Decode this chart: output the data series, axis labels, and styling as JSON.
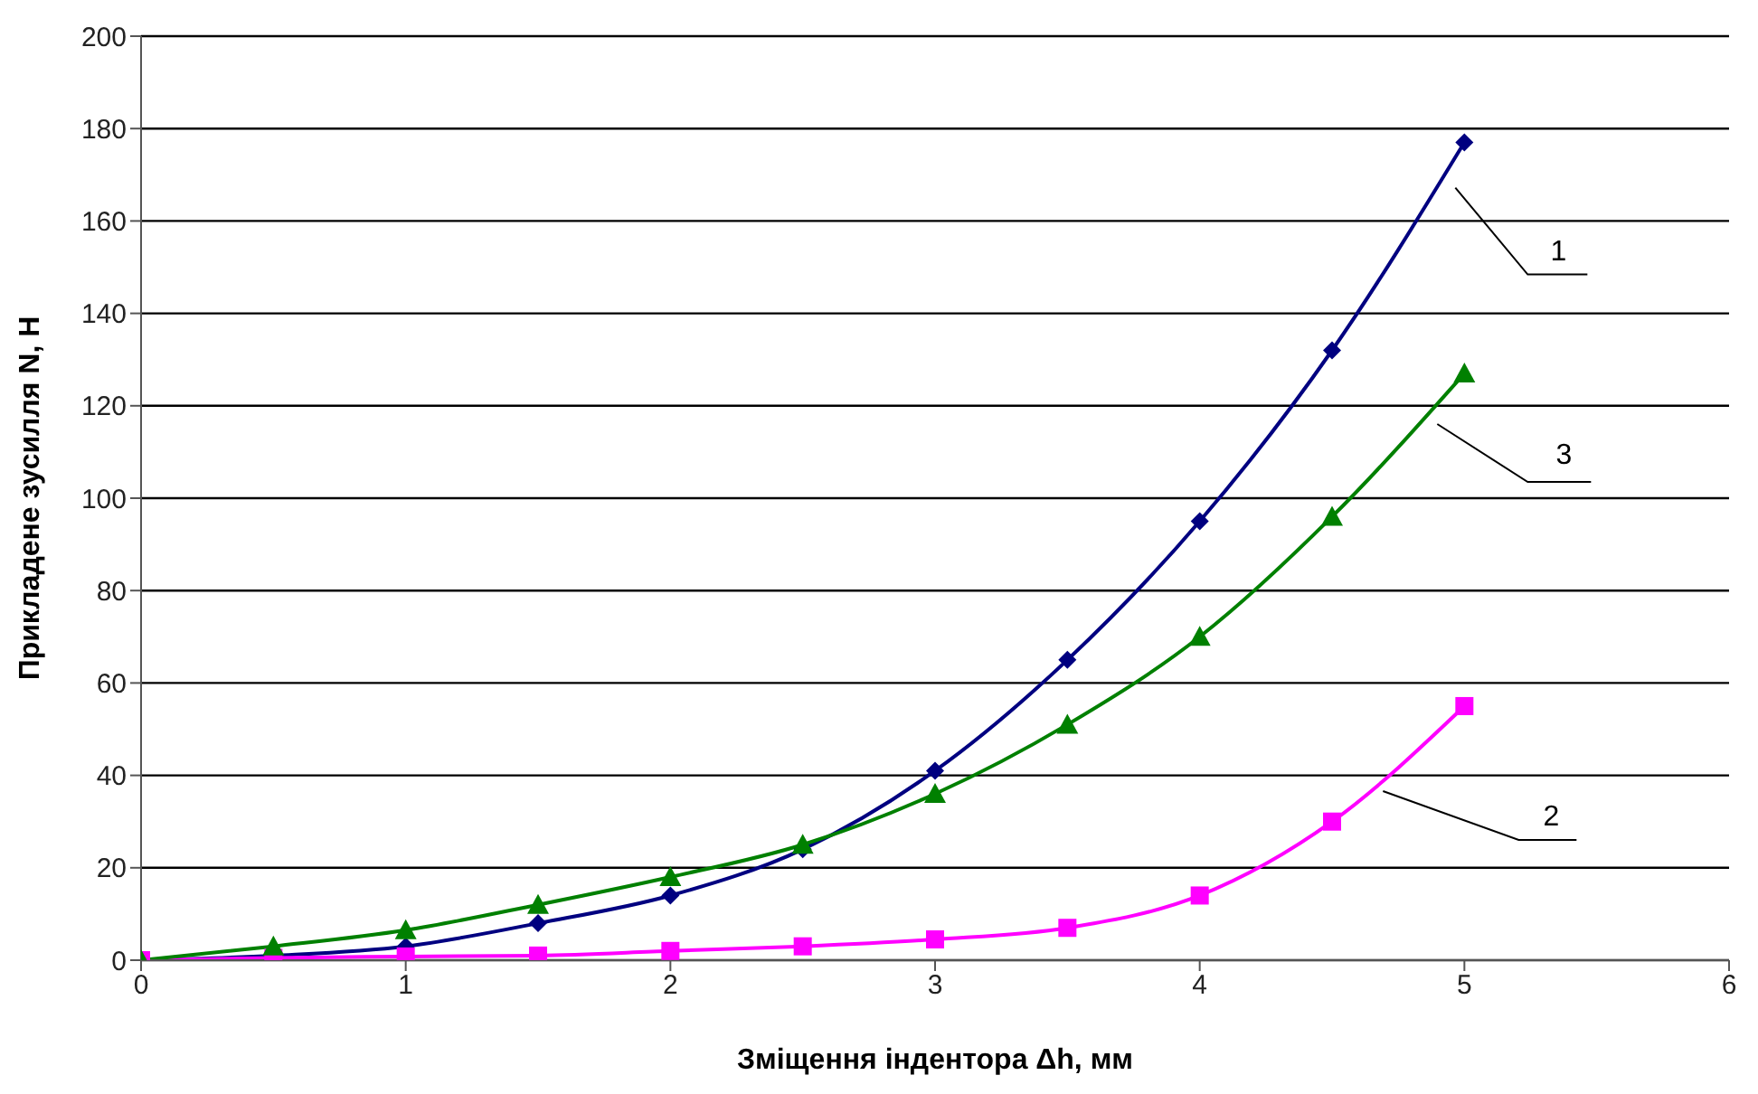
{
  "chart_data": {
    "type": "line",
    "xlabel": "Зміщення індентора Δh, мм",
    "ylabel": "Прикладене зусилля N, Н",
    "x": [
      0,
      0.5,
      1,
      1.5,
      2,
      2.5,
      3,
      3.5,
      4,
      4.5,
      5
    ],
    "series": [
      {
        "name": "1",
        "color": "#000080",
        "marker": "diamond",
        "values": [
          0,
          1,
          3,
          8,
          14,
          24,
          41,
          65,
          95,
          132,
          177
        ]
      },
      {
        "name": "2",
        "color": "#ff00ff",
        "marker": "square",
        "values": [
          0,
          0.5,
          0.8,
          1,
          2,
          3,
          4.5,
          7,
          14,
          30,
          55
        ]
      },
      {
        "name": "3",
        "color": "#008000",
        "marker": "triangle",
        "values": [
          0,
          3,
          6.5,
          12,
          18,
          25,
          36,
          51,
          70,
          96,
          127
        ]
      }
    ],
    "xlim": [
      0,
      6
    ],
    "xticks": [
      0,
      1,
      2,
      3,
      4,
      5,
      6
    ],
    "ylim": [
      0,
      200
    ],
    "yticks": [
      0,
      20,
      40,
      60,
      80,
      100,
      120,
      140,
      160,
      180,
      200
    ],
    "grid": "y",
    "line_style": "solid"
  }
}
